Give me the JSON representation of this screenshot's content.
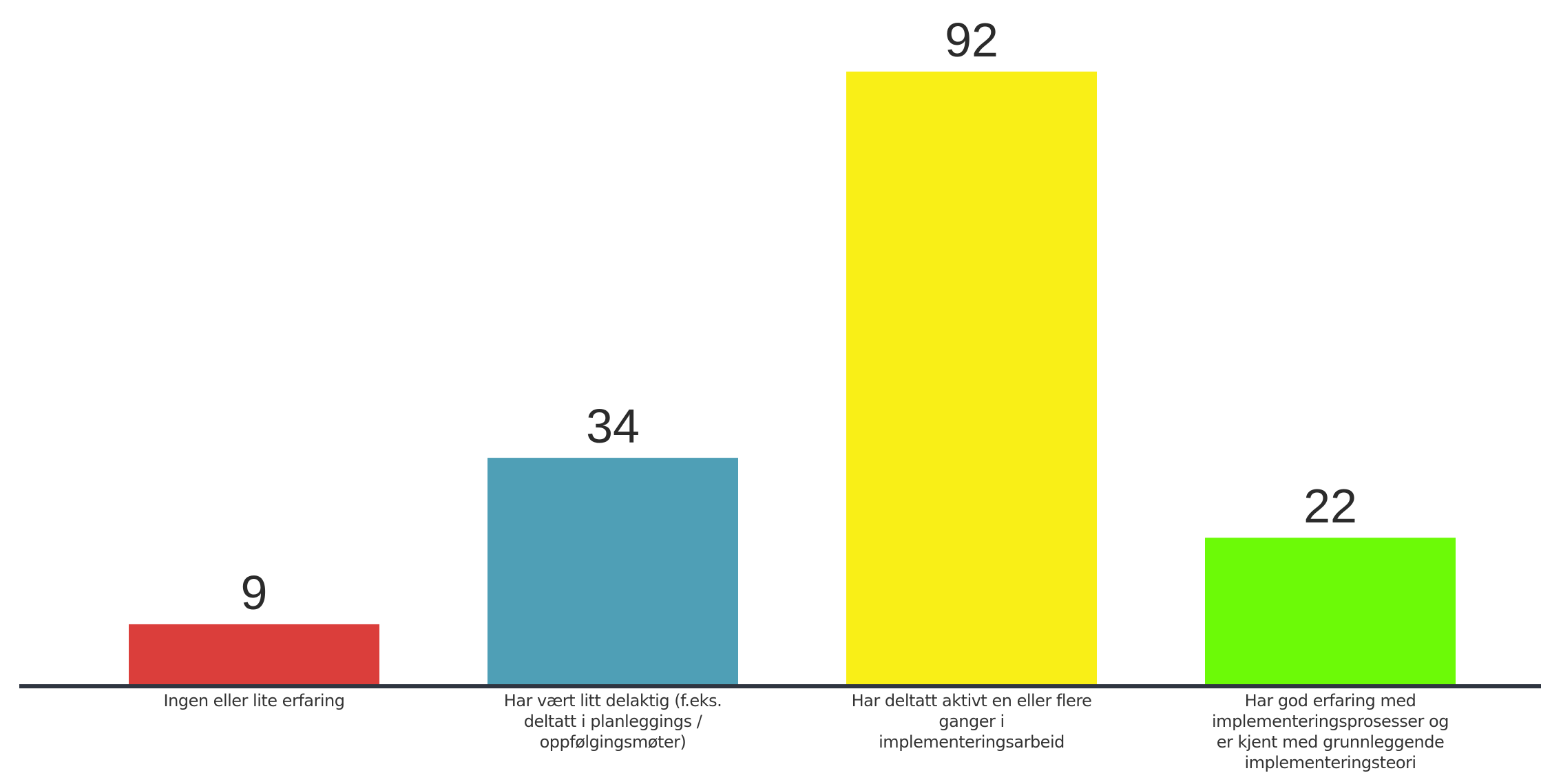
{
  "chart_data": {
    "type": "bar",
    "title": "",
    "xlabel": "",
    "ylabel": "",
    "categories": [
      "Ingen eller lite erfaring",
      "Har vært litt delaktig (f.eks. deltatt i planleggings / oppfølgingsmøter)",
      "Har deltatt aktivt en eller flere ganger i implementeringsarbeid",
      "Har god erfaring med implementeringsprosesser og er kjent med grunnleggende implementeringsteori"
    ],
    "category_lines": [
      [
        "Ingen eller lite erfaring"
      ],
      [
        "Har vært litt delaktig (f.eks.",
        "deltatt i planleggings /",
        "oppfølgingsmøter)"
      ],
      [
        "Har deltatt aktivt en eller flere",
        "ganger i",
        "implementeringsarbeid"
      ],
      [
        "Har god erfaring med",
        "implementeringsprosesser og",
        "er kjent med grunnleggende",
        "implementeringsteori"
      ]
    ],
    "values": [
      9,
      34,
      92,
      22
    ],
    "colors": [
      "#db3e3b",
      "#4f9fb6",
      "#f9ef17",
      "#6cfa07"
    ],
    "ylim": [
      0,
      92
    ],
    "grid": false,
    "legend": "none",
    "data_labels": true
  }
}
